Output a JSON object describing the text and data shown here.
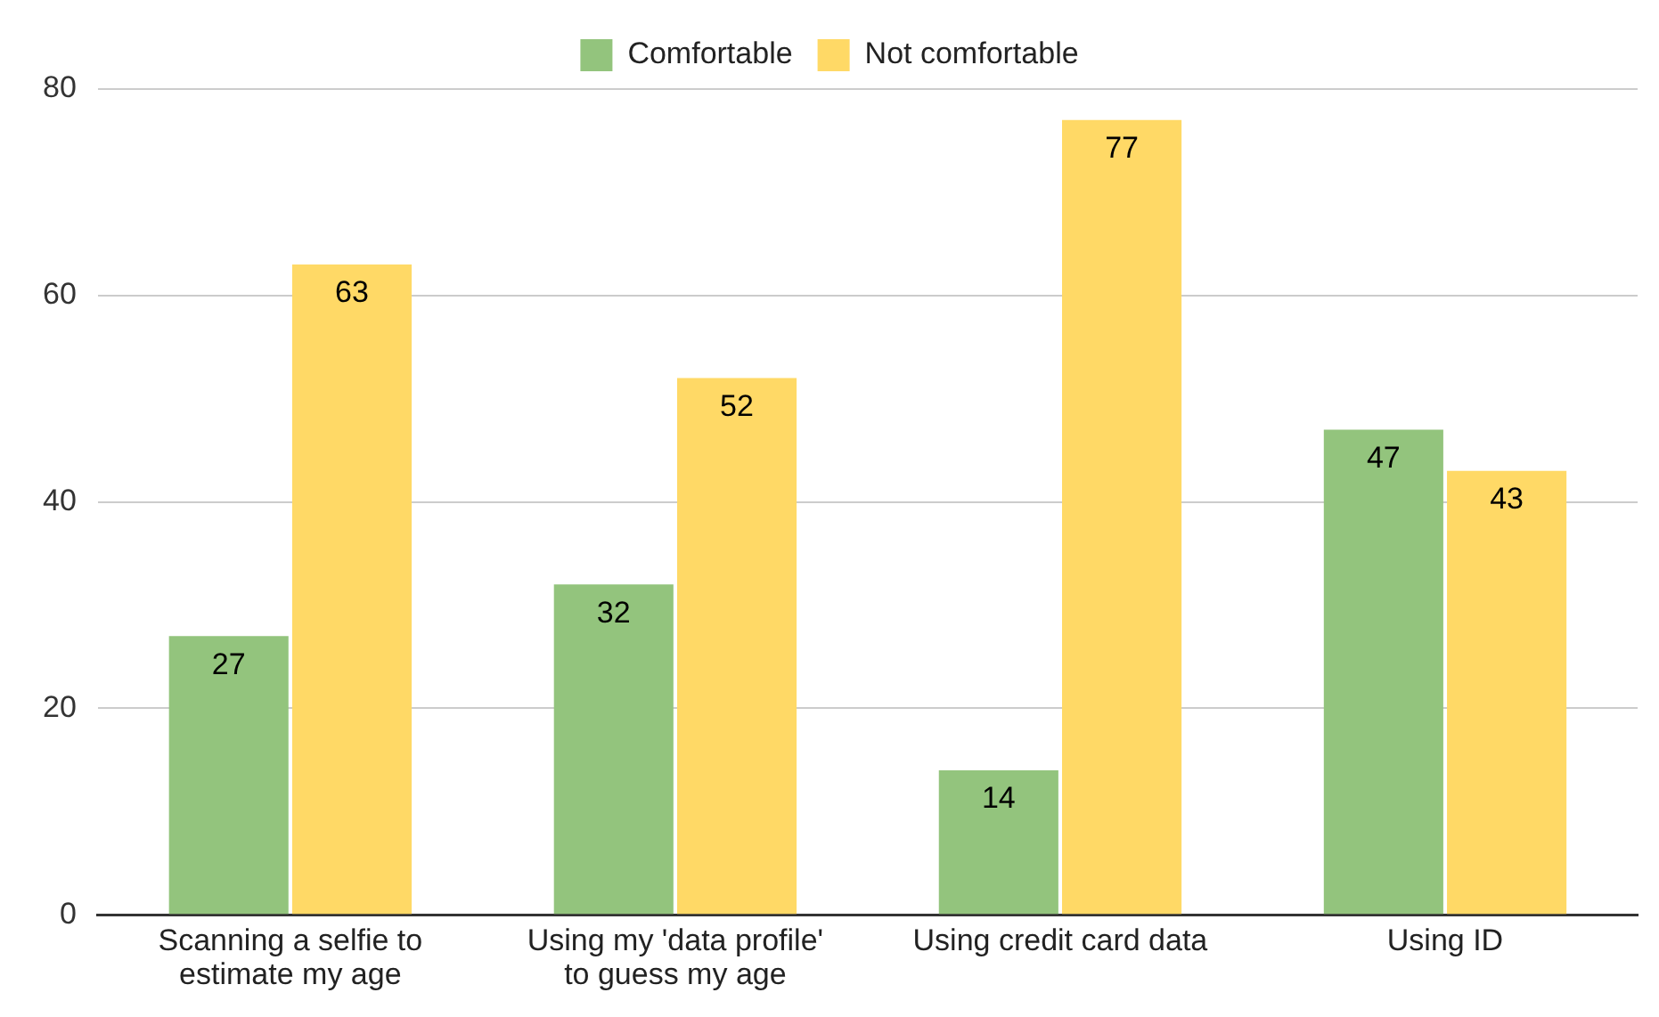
{
  "chart_data": {
    "type": "bar",
    "categories": [
      "Scanning a selfie to estimate my age",
      "Using my 'data profile' to guess my age",
      "Using credit card data",
      "Using ID"
    ],
    "series": [
      {
        "name": "Comfortable",
        "color": "#93c47d",
        "values": [
          27,
          32,
          14,
          47
        ]
      },
      {
        "name": "Not comfortable",
        "color": "#ffd966",
        "values": [
          63,
          52,
          77,
          43
        ]
      }
    ],
    "ylim": [
      0,
      80
    ],
    "yticks": [
      0,
      20,
      40,
      60,
      80
    ],
    "grid": "y",
    "legend": "top",
    "data_labels": true
  }
}
